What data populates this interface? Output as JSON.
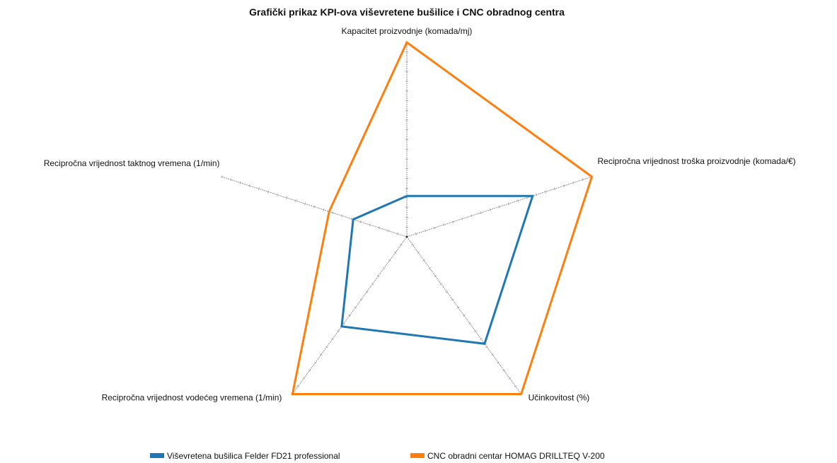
{
  "chart_data": {
    "type": "radar",
    "title": "Grafički prikaz KPI-ova viševretene bušilice i CNC obradnog centra",
    "axes": [
      "Kapacitet proizvodnje (komada/mj)",
      "Recipročna vrijednost troška proizvodnje (komada/€)",
      "Učinkovitost (%)",
      "Recipročna vrijednost vodećeg vremena (1/min)",
      "Recipročna vrijednost taktnog vremena (1/min)"
    ],
    "range": [
      0,
      1
    ],
    "series": [
      {
        "name": "Viševretena bušilica Felder FD21 professional",
        "color": "#1f77b4",
        "values": [
          0.21,
          0.68,
          0.68,
          0.57,
          0.29
        ]
      },
      {
        "name": "CNC obradni centar HOMAG DRILLTEQ V-200",
        "color": "#ff7f0e",
        "values": [
          1.0,
          1.0,
          1.0,
          1.0,
          0.42
        ]
      }
    ],
    "legend_position": "bottom-center",
    "grid": false
  }
}
